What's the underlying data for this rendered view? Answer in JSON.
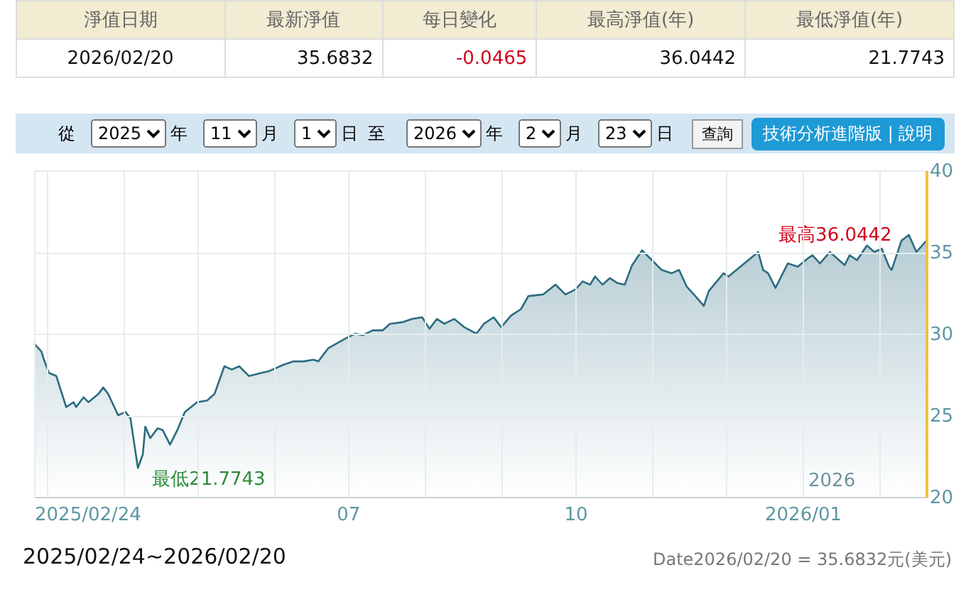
{
  "chart_data": {
    "type": "area",
    "x": [
      "2025-02-24",
      "2025-02-27",
      "2025-02-28",
      "2025-03-02",
      "2025-03-05",
      "2025-03-09",
      "2025-03-12",
      "2025-03-13",
      "2025-03-16",
      "2025-03-18",
      "2025-03-22",
      "2025-03-24",
      "2025-03-26",
      "2025-03-30",
      "2025-04-02",
      "2025-04-04",
      "2025-04-07",
      "2025-04-09",
      "2025-04-10",
      "2025-04-12",
      "2025-04-15",
      "2025-04-17",
      "2025-04-20",
      "2025-04-23",
      "2025-04-26",
      "2025-05-01",
      "2025-05-05",
      "2025-05-08",
      "2025-05-12",
      "2025-05-15",
      "2025-05-18",
      "2025-05-22",
      "2025-05-27",
      "2025-05-30",
      "2025-06-05",
      "2025-06-09",
      "2025-06-13",
      "2025-06-17",
      "2025-06-19",
      "2025-06-23",
      "2025-06-30",
      "2025-07-04",
      "2025-07-07",
      "2025-07-11",
      "2025-07-15",
      "2025-07-18",
      "2025-07-23",
      "2025-07-27",
      "2025-07-31",
      "2025-08-03",
      "2025-08-06",
      "2025-08-09",
      "2025-08-13",
      "2025-08-17",
      "2025-08-22",
      "2025-08-25",
      "2025-08-29",
      "2025-09-01",
      "2025-09-05",
      "2025-09-09",
      "2025-09-12",
      "2025-09-18",
      "2025-09-23",
      "2025-09-27",
      "2025-10-01",
      "2025-10-04",
      "2025-10-07",
      "2025-10-09",
      "2025-10-12",
      "2025-10-15",
      "2025-10-18",
      "2025-10-21",
      "2025-10-24",
      "2025-10-28",
      "2025-11-01",
      "2025-11-05",
      "2025-11-09",
      "2025-11-12",
      "2025-11-15",
      "2025-11-18",
      "2025-11-22",
      "2025-11-24",
      "2025-11-30",
      "2025-12-02",
      "2025-12-10",
      "2025-12-14",
      "2025-12-16",
      "2025-12-18",
      "2025-12-21",
      "2025-12-26",
      "2025-12-30",
      "2026-01-03",
      "2026-01-05",
      "2026-01-08",
      "2026-01-12",
      "2026-01-18",
      "2026-01-20",
      "2026-01-23",
      "2026-01-27",
      "2026-01-30",
      "2026-02-02",
      "2026-02-05",
      "2026-02-06",
      "2026-02-10",
      "2026-02-13",
      "2026-02-16",
      "2026-02-20"
    ],
    "series": [
      {
        "color": "#2b6c80",
        "values": [
          29.4,
          28.9,
          28.4,
          27.6,
          27.4,
          25.5,
          25.8,
          25.5,
          26.1,
          25.8,
          26.3,
          26.7,
          26.3,
          25.0,
          25.2,
          24.8,
          21.7743,
          22.6,
          24.3,
          23.6,
          24.2,
          24.1,
          23.2,
          24.1,
          25.2,
          25.8,
          25.9,
          26.3,
          28.0,
          27.8,
          28.0,
          27.4,
          27.6,
          27.7,
          28.1,
          28.3,
          28.3,
          28.4,
          28.3,
          29.1,
          29.7,
          30.0,
          29.9,
          30.2,
          30.2,
          30.6,
          30.7,
          30.9,
          31.0,
          30.3,
          30.9,
          30.6,
          30.9,
          30.4,
          30.0,
          30.6,
          31.0,
          30.4,
          31.1,
          31.5,
          32.3,
          32.4,
          33.0,
          32.4,
          32.7,
          33.2,
          33.0,
          33.5,
          33.0,
          33.4,
          33.1,
          33.0,
          34.2,
          35.1,
          34.5,
          33.9,
          33.7,
          33.9,
          32.9,
          32.4,
          31.7,
          32.6,
          33.7,
          33.5,
          34.5,
          35.0,
          33.9,
          33.7,
          32.8,
          34.3,
          34.1,
          34.6,
          34.8,
          34.3,
          35.0,
          34.2,
          34.8,
          34.5,
          35.4,
          35.0,
          35.2,
          34.1,
          33.9,
          35.7,
          36.0442,
          35.0,
          35.6832
        ]
      }
    ],
    "xlim": [
      "2025-02-24",
      "2026-02-20"
    ],
    "xticks": [
      {
        "value": "2025-02-24",
        "label": "2025/02/24"
      },
      {
        "value": "2025-03-01",
        "label": null
      },
      {
        "value": "2025-04-01",
        "label": null
      },
      {
        "value": "2025-05-01",
        "label": null
      },
      {
        "value": "2025-06-01",
        "label": null
      },
      {
        "value": "2025-07-01",
        "label": "07"
      },
      {
        "value": "2025-08-01",
        "label": null
      },
      {
        "value": "2025-09-01",
        "label": null
      },
      {
        "value": "2025-10-01",
        "label": "10"
      },
      {
        "value": "2025-11-01",
        "label": null
      },
      {
        "value": "2025-12-01",
        "label": null
      },
      {
        "value": "2026-01-01",
        "label": "2026/01"
      },
      {
        "value": "2026-02-01",
        "label": null
      }
    ],
    "ylim": [
      20,
      40
    ],
    "yticks": [
      20,
      25,
      30,
      35,
      40
    ],
    "grid": true,
    "annotations": [
      {
        "text": "最高36.0442",
        "x": "2026-02-13",
        "y": 36.0442
      },
      {
        "text": "最低21.7743",
        "x": "2025-04-07",
        "y": 21.7743
      },
      {
        "text": "2026",
        "x": "2026-01-01",
        "y": 20.4
      },
      "淨值日期",
      "最新淨值",
      "每日變化",
      "最高淨值(年)",
      "最低淨值(年)",
      "2026/02/20",
      "35.6832",
      "-0.0465",
      "36.0442",
      "21.7743",
      "從",
      "2025",
      "年",
      "11",
      "月",
      "1",
      "日",
      "至",
      "2026",
      "年",
      "2",
      "月",
      "23",
      "日",
      "查詢",
      "技術分析進階版 | 說明",
      "2025/02/24~2026/02/20",
      "Date2026/02/20 = 35.6832元(美元)"
    ]
  }
}
